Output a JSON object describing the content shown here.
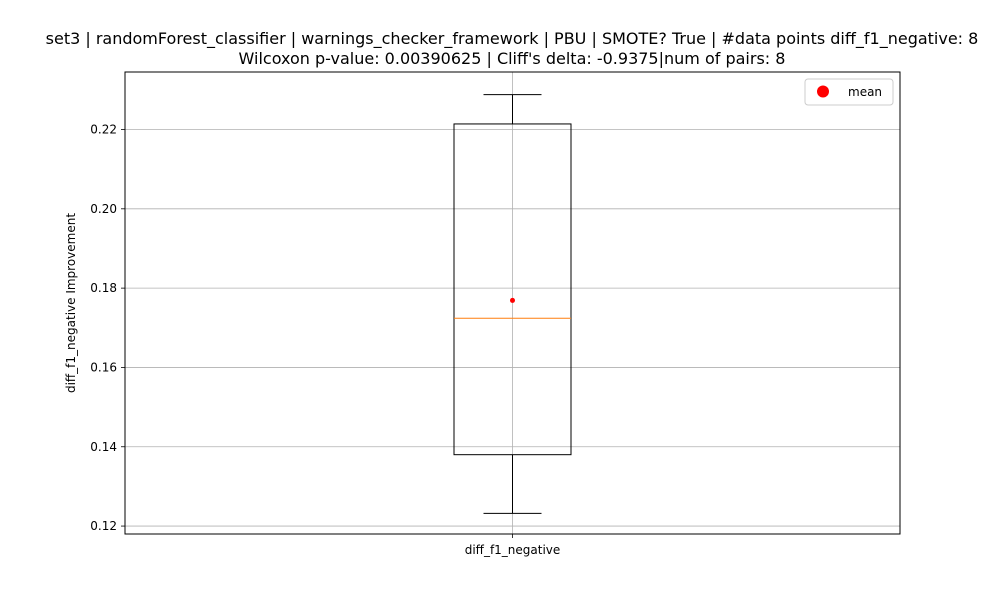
{
  "chart_data": {
    "type": "box",
    "title_line1": "set3 | randomForest_classifier | warnings_checker_framework | PBU | SMOTE? True | #data points diff_f1_negative: 8",
    "title_line2": "Wilcoxon p-value: 0.00390625 | Cliff's delta: -0.9375|num of pairs: 8",
    "xlabel": "",
    "ylabel": "diff_f1_negative Improvement",
    "categories": [
      "diff_f1_negative"
    ],
    "ylim": [
      0.118,
      0.2345
    ],
    "yticks": [
      0.12,
      0.14,
      0.16,
      0.18,
      0.2,
      0.22
    ],
    "ytick_labels": [
      "0.12",
      "0.14",
      "0.16",
      "0.18",
      "0.20",
      "0.22"
    ],
    "grid": true,
    "box": {
      "whisker_low": 0.1232,
      "q1": 0.138,
      "median": 0.1724,
      "q3": 0.2214,
      "whisker_high": 0.2288,
      "mean": 0.1769
    },
    "legend": {
      "placement": "top-right",
      "entries": [
        {
          "label": "mean",
          "color": "#ff0000"
        }
      ]
    },
    "colors": {
      "box": "#000000",
      "median": "#ff7f0e",
      "mean": "#ff0000",
      "grid": "#b0b0b0"
    }
  }
}
